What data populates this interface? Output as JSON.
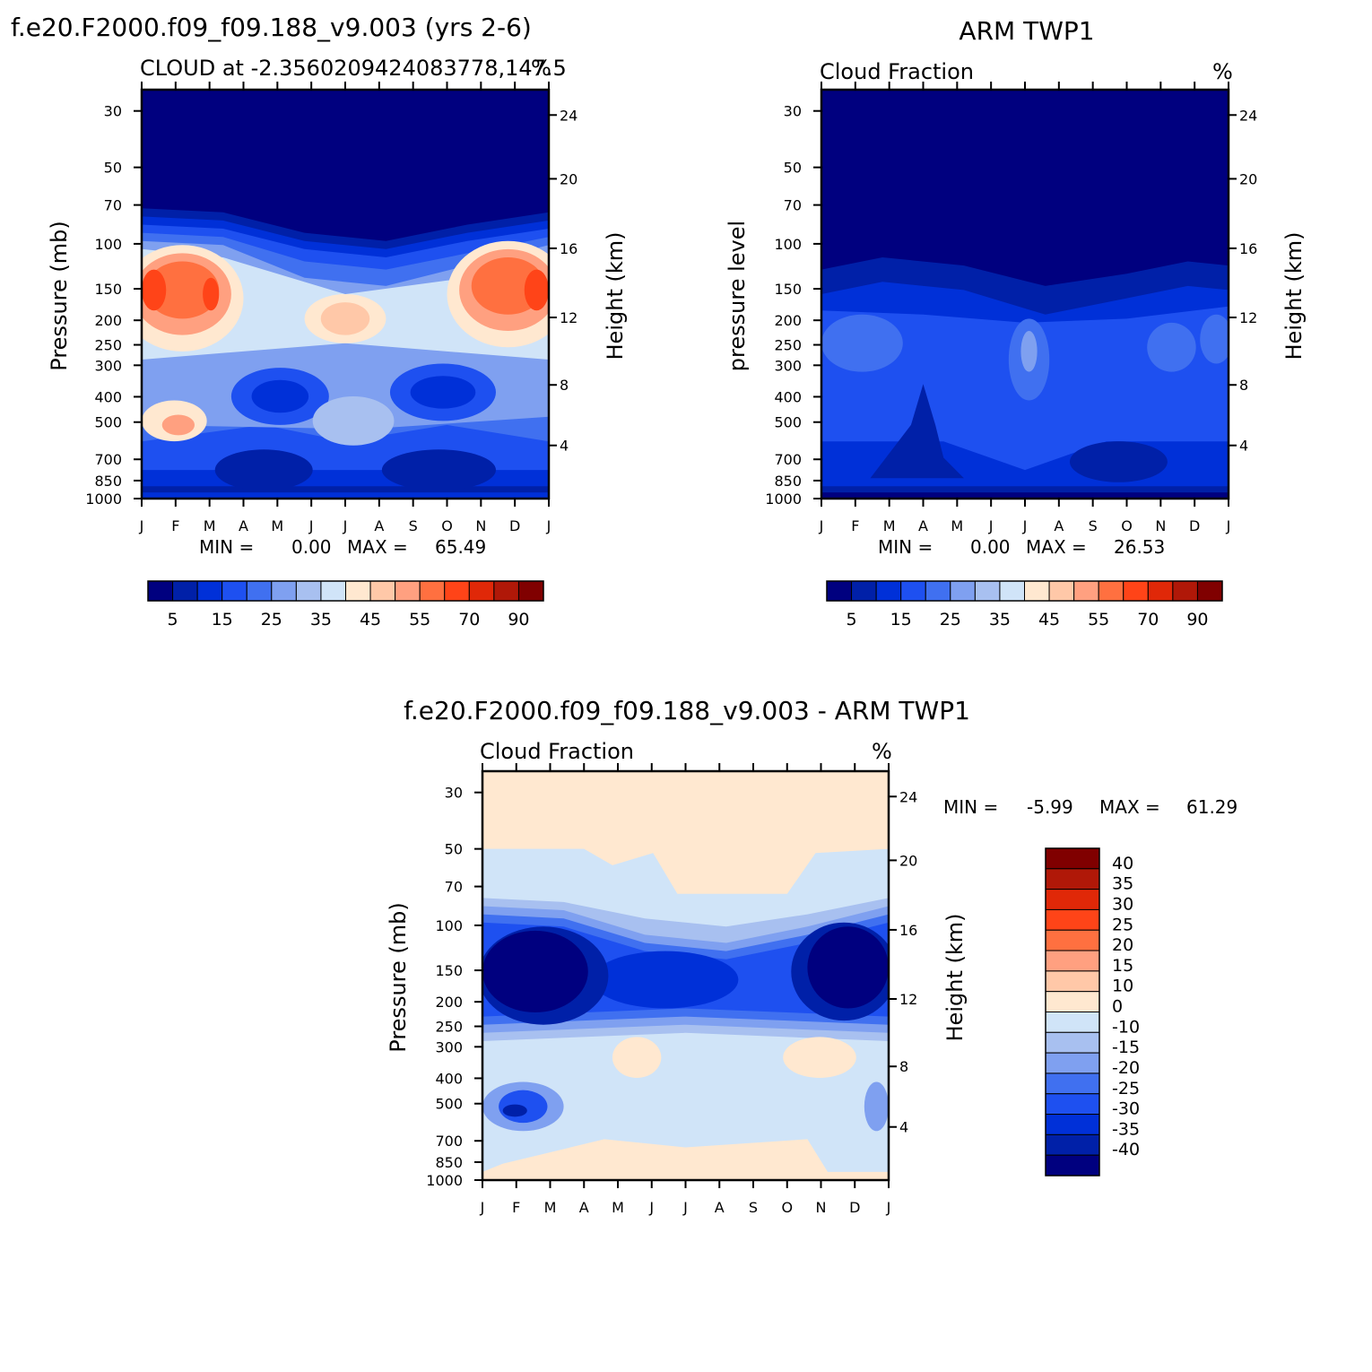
{
  "panels": [
    {
      "main_title": "f.e20.F2000.f09_f09.188_v9.003 (yrs 2-6)",
      "subtitle_left": "CLOUD at -2.3560209424083778,147.5",
      "subtitle_right": "%",
      "ylabel_left": "Pressure (mb)",
      "ylabel_right": "Height (km)",
      "min_label": "MIN =",
      "min_value": "0.00",
      "max_label": "MAX =",
      "max_value": "65.49"
    },
    {
      "main_title": "ARM TWP1",
      "subtitle_left": "Cloud Fraction",
      "subtitle_right": "%",
      "ylabel_left": "pressure level",
      "ylabel_right": "Height (km)",
      "min_label": "MIN =",
      "min_value": "0.00",
      "max_label": "MAX =",
      "max_value": "26.53"
    },
    {
      "main_title": "f.e20.F2000.f09_f09.188_v9.003 - ARM TWP1",
      "subtitle_left": "Cloud Fraction",
      "subtitle_right": "%",
      "ylabel_left": "Pressure (mb)",
      "ylabel_right": "Height (km)",
      "min_label": "MIN =",
      "min_value": "-5.99",
      "max_label": "MAX =",
      "max_value": "61.29"
    }
  ],
  "chart_data": [
    {
      "type": "heatmap",
      "title": "f.e20.F2000.f09_f09.188_v9.003 (yrs 2-6)",
      "subtitle": "CLOUD at -2.3560209424083778,147.5",
      "units": "%",
      "x_ticks": [
        "J",
        "F",
        "M",
        "A",
        "M",
        "J",
        "J",
        "A",
        "S",
        "O",
        "N",
        "D",
        "J"
      ],
      "y_ticks_pressure": [
        30,
        50,
        70,
        100,
        150,
        200,
        250,
        300,
        400,
        500,
        700,
        850,
        1000
      ],
      "y_ticks_height": [
        24,
        20,
        16,
        12,
        8,
        4
      ],
      "ylabel": "Pressure (mb)",
      "ylabel_right": "Height (km)",
      "min": 0.0,
      "max": 65.49,
      "levels": [
        "5",
        "15",
        "25",
        "35",
        "45",
        "55",
        "70",
        "90"
      ],
      "colors": [
        "#00007f",
        "#0020a8",
        "#0030d8",
        "#1e50f0",
        "#4070f0",
        "#7fa0f0",
        "#a8c0f0",
        "#d0e4f8",
        "#ffe8d0",
        "#ffc8a8",
        "#ffa080",
        "#ff7040",
        "#ff4418",
        "#e02808",
        "#b01808",
        "#800000"
      ]
    },
    {
      "type": "heatmap",
      "title": "ARM TWP1",
      "subtitle": "Cloud Fraction",
      "units": "%",
      "x_ticks": [
        "J",
        "F",
        "M",
        "A",
        "M",
        "J",
        "J",
        "A",
        "S",
        "O",
        "N",
        "D",
        "J"
      ],
      "y_ticks_pressure": [
        30,
        50,
        70,
        100,
        150,
        200,
        250,
        300,
        400,
        500,
        700,
        850,
        1000
      ],
      "y_ticks_height": [
        24,
        20,
        16,
        12,
        8,
        4
      ],
      "ylabel": "pressure level",
      "ylabel_right": "Height (km)",
      "min": 0.0,
      "max": 26.53,
      "levels": [
        "5",
        "15",
        "25",
        "35",
        "45",
        "55",
        "70",
        "90"
      ],
      "colors": [
        "#00007f",
        "#0020a8",
        "#0030d8",
        "#1e50f0",
        "#4070f0",
        "#7fa0f0",
        "#a8c0f0",
        "#d0e4f8",
        "#ffe8d0",
        "#ffc8a8",
        "#ffa080",
        "#ff7040",
        "#ff4418",
        "#e02808",
        "#b01808",
        "#800000"
      ]
    },
    {
      "type": "heatmap",
      "title": "f.e20.F2000.f09_f09.188_v9.003 - ARM TWP1",
      "subtitle": "Cloud Fraction",
      "units": "%",
      "x_ticks": [
        "J",
        "F",
        "M",
        "A",
        "M",
        "J",
        "J",
        "A",
        "S",
        "O",
        "N",
        "D",
        "J"
      ],
      "y_ticks_pressure": [
        30,
        50,
        70,
        100,
        150,
        200,
        250,
        300,
        400,
        500,
        700,
        850,
        1000
      ],
      "y_ticks_height": [
        24,
        20,
        16,
        12,
        8,
        4
      ],
      "ylabel": "Pressure (mb)",
      "ylabel_right": "Height (km)",
      "min": -5.99,
      "max": 61.29,
      "levels": [
        "40",
        "35",
        "30",
        "25",
        "20",
        "15",
        "10",
        "0",
        "-10",
        "-15",
        "-20",
        "-25",
        "-30",
        "-35",
        "-40"
      ],
      "colors": [
        "#800000",
        "#b01808",
        "#e02808",
        "#ff4418",
        "#ff7040",
        "#ffa080",
        "#ffc8a8",
        "#ffe8d0",
        "#d0e4f8",
        "#a8c0f0",
        "#7fa0f0",
        "#4070f0",
        "#1e50f0",
        "#0030d8",
        "#0020a8",
        "#00007f"
      ]
    }
  ]
}
